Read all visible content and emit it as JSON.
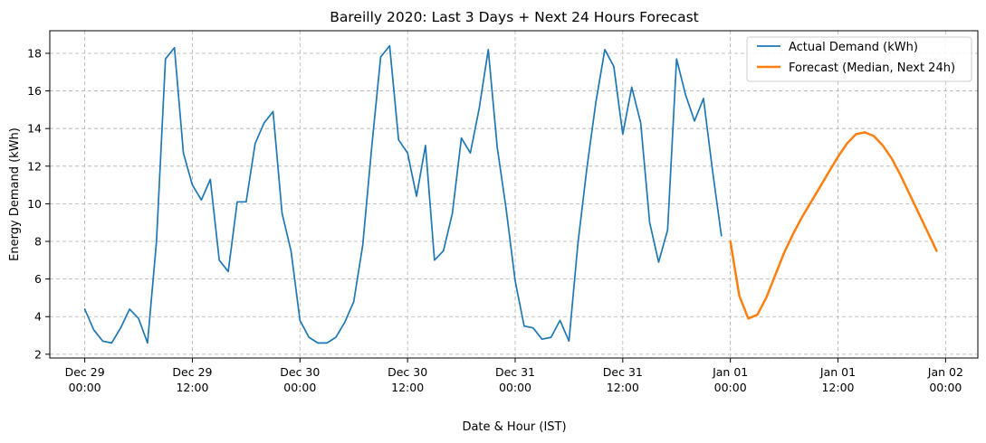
{
  "chart_data": {
    "type": "line",
    "title": "Bareilly 2020: Last 3 Days + Next 24 Hours Forecast",
    "xlabel": "Date & Hour (IST)",
    "ylabel": "Energy Demand (kWh)",
    "x_unit": "hours",
    "x_ticks": [
      {
        "x": 0,
        "line1": "Dec 29",
        "line2": "00:00"
      },
      {
        "x": 12,
        "line1": "Dec 29",
        "line2": "12:00"
      },
      {
        "x": 24,
        "line1": "Dec 30",
        "line2": "00:00"
      },
      {
        "x": 36,
        "line1": "Dec 30",
        "line2": "12:00"
      },
      {
        "x": 48,
        "line1": "Dec 31",
        "line2": "00:00"
      },
      {
        "x": 60,
        "line1": "Dec 31",
        "line2": "12:00"
      },
      {
        "x": 72,
        "line1": "Jan 01",
        "line2": "00:00"
      },
      {
        "x": 84,
        "line1": "Jan 01",
        "line2": "12:00"
      },
      {
        "x": 96,
        "line1": "Jan 02",
        "line2": "00:00"
      }
    ],
    "xlim": [
      -3.9,
      99.6
    ],
    "ylim": [
      1.8,
      19.2
    ],
    "y_ticks": [
      2,
      4,
      6,
      8,
      10,
      12,
      14,
      16,
      18
    ],
    "grid": true,
    "legend_position": "top-right",
    "series": [
      {
        "name": "Actual Demand (kWh)",
        "color": "#1f77b4",
        "x_start": 0,
        "values": [
          4.4,
          3.3,
          2.7,
          2.6,
          3.4,
          4.4,
          3.9,
          2.6,
          8.0,
          17.7,
          18.3,
          12.7,
          11.0,
          10.2,
          11.3,
          7.0,
          6.4,
          10.1,
          10.1,
          13.2,
          14.3,
          14.9,
          9.5,
          7.5,
          3.8,
          2.9,
          2.6,
          2.6,
          2.9,
          3.7,
          4.8,
          7.8,
          13.0,
          17.8,
          18.4,
          13.4,
          12.7,
          10.4,
          13.1,
          7.0,
          7.5,
          9.5,
          13.5,
          12.7,
          15.1,
          18.2,
          13.0,
          9.7,
          5.9,
          3.5,
          3.4,
          2.8,
          2.9,
          3.8,
          2.7,
          7.9,
          11.9,
          15.4,
          18.2,
          17.3,
          13.7,
          16.2,
          14.3,
          9.0,
          6.9,
          8.6,
          17.7,
          15.8,
          14.4,
          15.6,
          11.8,
          8.3
        ]
      },
      {
        "name": "Forecast (Median, Next 24h)",
        "color": "#ff7f0e",
        "x_start": 72,
        "values": [
          8.0,
          5.1,
          3.9,
          4.1,
          5.0,
          6.2,
          7.4,
          8.4,
          9.3,
          10.1,
          10.9,
          11.7,
          12.5,
          13.2,
          13.7,
          13.8,
          13.6,
          13.1,
          12.4,
          11.5,
          10.5,
          9.5,
          8.5,
          7.5
        ]
      }
    ]
  }
}
